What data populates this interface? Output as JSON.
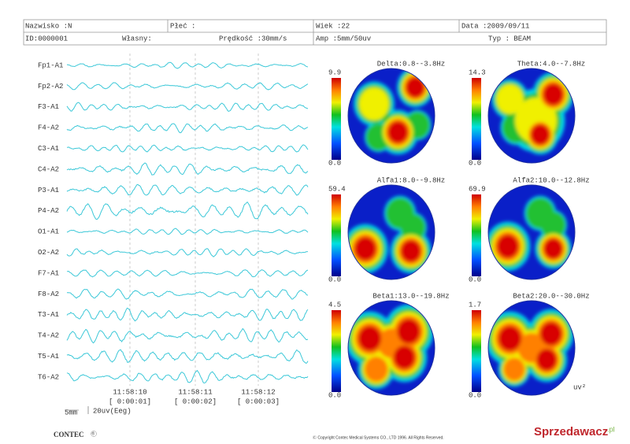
{
  "header": {
    "name": "Nazwisko :N",
    "sex": "Płeć :",
    "age": "Wiek :22",
    "date": "Data :2009/09/11",
    "id": "ID:0000001",
    "own": "Własny:",
    "speed": "Prędkość :30mm/s",
    "amp": "Amp :5mm/50uv",
    "type": "Typ : BEAM"
  },
  "channels": [
    "Fp1-A1",
    "Fp2-A2",
    "F3-A1",
    "F4-A2",
    "C3-A1",
    "C4-A2",
    "P3-A1",
    "P4-A2",
    "O1-A1",
    "O2-A2",
    "F7-A1",
    "F8-A2",
    "T3-A1",
    "T4-A2",
    "T5-A1",
    "T6-A2"
  ],
  "times": [
    {
      "clock": "11:58:10",
      "elapsed": "[ 0:00:01]"
    },
    {
      "clock": "11:58:11",
      "elapsed": "[ 0:00:02]"
    },
    {
      "clock": "11:58:12",
      "elapsed": "[ 0:00:03]"
    }
  ],
  "scale": {
    "time": "5mm",
    "amplitude": "20uv(Eeg)"
  },
  "maps": [
    {
      "title": "Delta:0.8--3.8Hz",
      "max": "9.9",
      "min": "0.0"
    },
    {
      "title": "Theta:4.0--7.8Hz",
      "max": "14.3",
      "min": "0.0"
    },
    {
      "title": "Alfa1:8.0--9.8Hz",
      "max": "59.4",
      "min": "0.0"
    },
    {
      "title": "Alfa2:10.0--12.8Hz",
      "max": "69.9",
      "min": "0.0"
    },
    {
      "title": "Beta1:13.0--19.8Hz",
      "max": "4.5",
      "min": "0.0"
    },
    {
      "title": "Beta2:20.0--30.0Hz",
      "max": "1.7",
      "min": "0.0"
    }
  ],
  "unit": "uv²",
  "footer": {
    "brand": "CONTEC",
    "mark": "®",
    "copyright": "Ⓒ Copyright Contec Medical Systems CO., LTD 1996. All Rights Reserved."
  },
  "watermark": {
    "name": "Sprzedawacz",
    "domain": ".pl"
  }
}
